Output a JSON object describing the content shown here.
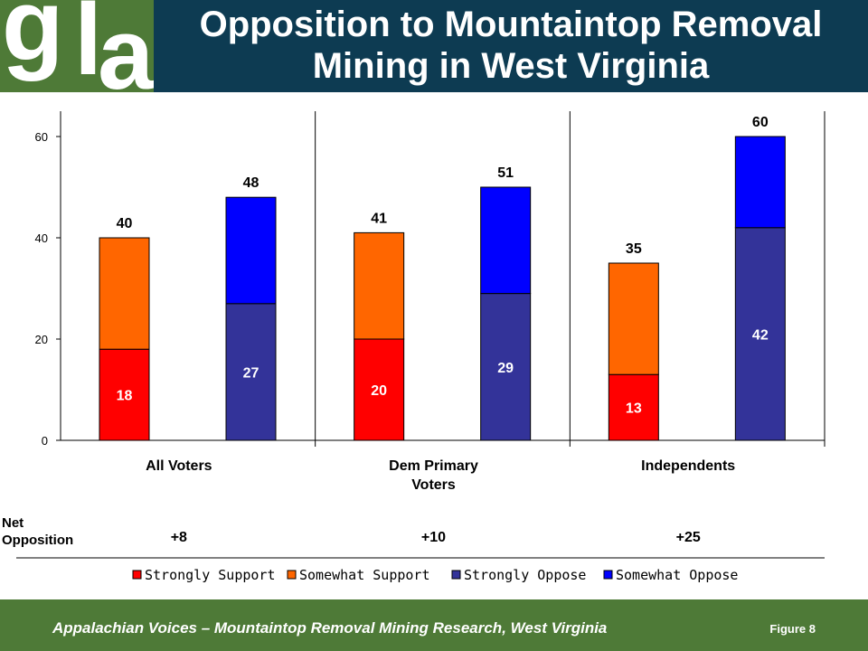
{
  "title_line1": "Opposition to Mountaintop Removal",
  "title_line2": "Mining in West Virginia",
  "logo": "gla",
  "footer": "Appalachian Voices – Mountaintop Removal Mining Research, West Virginia",
  "figure_label": "Figure 8",
  "net_opposition_label": [
    "Net",
    "Opposition"
  ],
  "colors": {
    "header_bg": "#0d3b52",
    "brand_green": "#4e7a37",
    "strongly_support": "#ff0000",
    "somewhat_support": "#ff6600",
    "strongly_oppose": "#333399",
    "somewhat_oppose": "#0000ff"
  },
  "chart_data": {
    "type": "bar",
    "stacked": true,
    "ylim": [
      0,
      65
    ],
    "yticks": [
      0,
      20,
      40,
      60
    ],
    "grid": false,
    "legend_position": "bottom",
    "groups": [
      {
        "name": "All Voters",
        "support": {
          "strongly": 18,
          "somewhat": 22,
          "total": 40
        },
        "oppose": {
          "strongly": 27,
          "somewhat": 21,
          "total": 48
        },
        "net_opposition": "+8"
      },
      {
        "name": "Dem Primary Voters",
        "support": {
          "strongly": 20,
          "somewhat": 22,
          "total": 41
        },
        "oppose": {
          "strongly": 29,
          "somewhat": 21,
          "total": 51
        },
        "net_opposition": "+10"
      },
      {
        "name": "Independents",
        "support": {
          "strongly": 13,
          "somewhat": 22,
          "total": 35
        },
        "oppose": {
          "strongly": 42,
          "somewhat": 18,
          "total": 60
        },
        "net_opposition": "+25"
      }
    ],
    "legend": [
      "Strongly Support",
      "Somewhat Support",
      "Strongly Oppose",
      "Somewhat Oppose"
    ]
  }
}
